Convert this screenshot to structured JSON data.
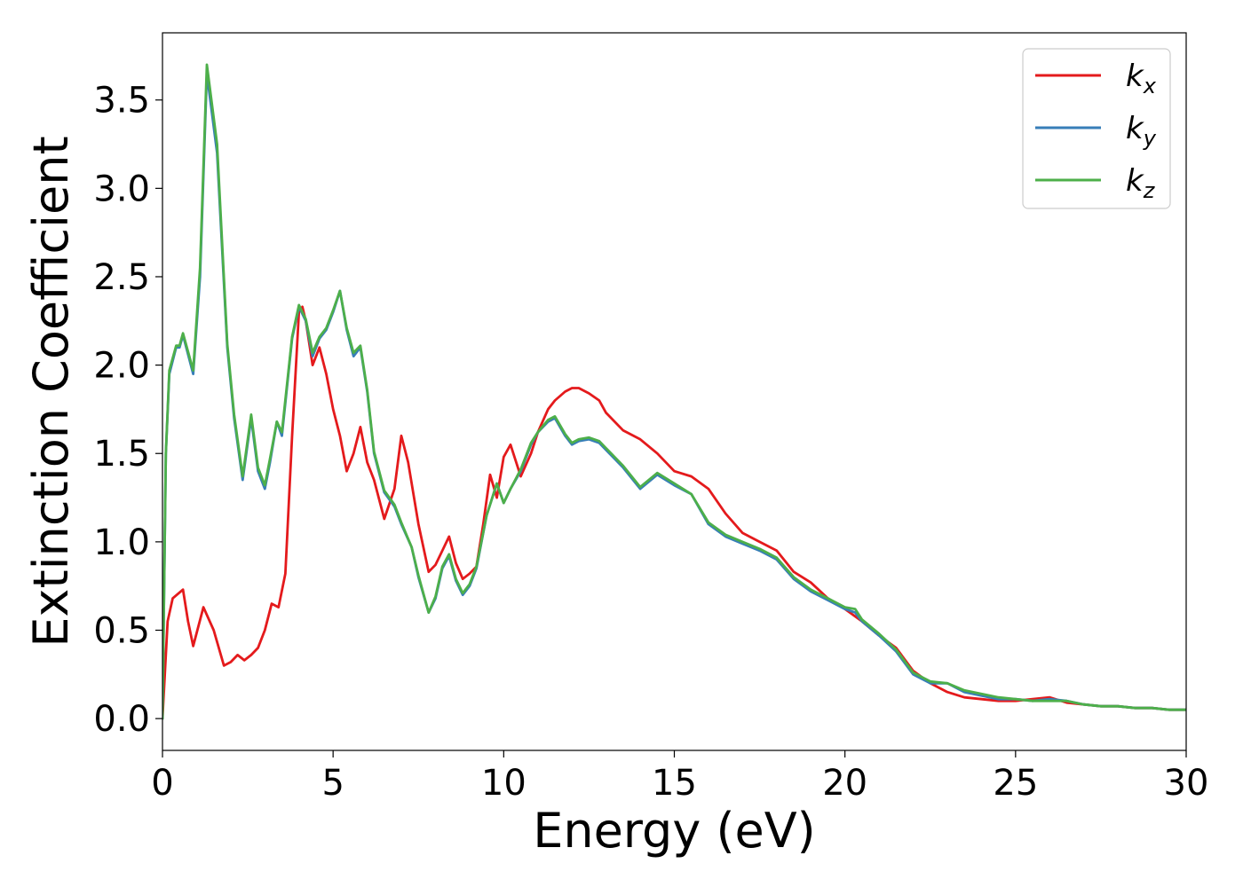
{
  "chart_data": {
    "type": "line",
    "xlabel": "Energy (eV)",
    "ylabel": "Extinction Coefficient",
    "xlim": [
      0,
      30
    ],
    "ylim": [
      -0.18,
      3.88
    ],
    "xticks": [
      "0",
      "5",
      "10",
      "15",
      "20",
      "25",
      "30"
    ],
    "yticks": [
      "0.0",
      "0.5",
      "1.0",
      "1.5",
      "2.0",
      "2.5",
      "3.0",
      "3.5"
    ],
    "grid": false,
    "legend_position": "top-right",
    "series": [
      {
        "name": "k",
        "subscript": "x",
        "color": "#e41a1c",
        "x": [
          0,
          0.15,
          0.3,
          0.6,
          0.75,
          0.9,
          1.2,
          1.5,
          1.8,
          2.0,
          2.2,
          2.4,
          2.6,
          2.8,
          3.0,
          3.2,
          3.4,
          3.6,
          3.8,
          4.0,
          4.1,
          4.2,
          4.4,
          4.6,
          4.8,
          5.0,
          5.2,
          5.4,
          5.6,
          5.8,
          6.0,
          6.2,
          6.5,
          6.8,
          7.0,
          7.2,
          7.5,
          7.8,
          8.0,
          8.2,
          8.4,
          8.6,
          8.8,
          9.0,
          9.2,
          9.4,
          9.6,
          9.8,
          10.0,
          10.2,
          10.5,
          10.8,
          11.0,
          11.3,
          11.5,
          11.8,
          12.0,
          12.2,
          12.5,
          12.8,
          13.0,
          13.5,
          14.0,
          14.5,
          15.0,
          15.5,
          16.0,
          16.5,
          17.0,
          17.5,
          18.0,
          18.5,
          19.0,
          19.5,
          20.0,
          20.5,
          21.0,
          21.5,
          22.0,
          22.5,
          23.0,
          23.5,
          24.0,
          24.5,
          25.0,
          25.5,
          26.0,
          26.5,
          27.0,
          27.5,
          28.0,
          28.5,
          29.0,
          29.5,
          30.0
        ],
        "y": [
          0.0,
          0.55,
          0.68,
          0.73,
          0.55,
          0.41,
          0.63,
          0.5,
          0.3,
          0.32,
          0.36,
          0.33,
          0.36,
          0.4,
          0.5,
          0.65,
          0.63,
          0.82,
          1.6,
          2.3,
          2.33,
          2.25,
          2.0,
          2.1,
          1.95,
          1.75,
          1.6,
          1.4,
          1.5,
          1.65,
          1.45,
          1.35,
          1.13,
          1.3,
          1.6,
          1.45,
          1.1,
          0.83,
          0.87,
          0.95,
          1.03,
          0.88,
          0.79,
          0.82,
          0.86,
          1.1,
          1.38,
          1.25,
          1.48,
          1.55,
          1.37,
          1.5,
          1.62,
          1.75,
          1.8,
          1.85,
          1.87,
          1.87,
          1.84,
          1.8,
          1.73,
          1.63,
          1.58,
          1.5,
          1.4,
          1.37,
          1.3,
          1.16,
          1.05,
          1.0,
          0.95,
          0.83,
          0.77,
          0.68,
          0.62,
          0.55,
          0.47,
          0.4,
          0.27,
          0.2,
          0.15,
          0.12,
          0.11,
          0.1,
          0.1,
          0.11,
          0.12,
          0.09,
          0.08,
          0.07,
          0.07,
          0.06,
          0.06,
          0.05,
          0.05
        ]
      },
      {
        "name": "k",
        "subscript": "y",
        "color": "#377eb8",
        "x": [
          0,
          0.1,
          0.2,
          0.4,
          0.5,
          0.6,
          0.9,
          1.1,
          1.3,
          1.6,
          1.9,
          2.1,
          2.35,
          2.6,
          2.8,
          3.0,
          3.15,
          3.35,
          3.5,
          3.8,
          4.0,
          4.2,
          4.4,
          4.6,
          4.8,
          5.0,
          5.2,
          5.4,
          5.6,
          5.8,
          6.0,
          6.2,
          6.5,
          6.8,
          7.0,
          7.3,
          7.5,
          7.8,
          8.0,
          8.2,
          8.4,
          8.6,
          8.8,
          9.0,
          9.2,
          9.5,
          9.8,
          10.0,
          10.2,
          10.5,
          10.8,
          11.0,
          11.3,
          11.5,
          11.8,
          12.0,
          12.2,
          12.5,
          12.8,
          13.0,
          13.5,
          14.0,
          14.5,
          15.0,
          15.5,
          16.0,
          16.5,
          17.0,
          17.5,
          18.0,
          18.5,
          19.0,
          19.5,
          20.0,
          20.3,
          20.5,
          21.0,
          21.5,
          22.0,
          22.5,
          23.0,
          23.5,
          24.0,
          24.5,
          25.0,
          25.5,
          26.0,
          26.5,
          27.0,
          27.5,
          28.0,
          28.5,
          29.0,
          29.5,
          30.0
        ],
        "y": [
          0.0,
          1.5,
          1.95,
          2.1,
          2.1,
          2.17,
          1.95,
          2.5,
          3.65,
          3.2,
          2.1,
          1.7,
          1.35,
          1.7,
          1.4,
          1.3,
          1.45,
          1.68,
          1.6,
          2.15,
          2.33,
          2.25,
          2.05,
          2.15,
          2.2,
          2.3,
          2.42,
          2.2,
          2.05,
          2.1,
          1.85,
          1.5,
          1.28,
          1.2,
          1.1,
          0.97,
          0.8,
          0.6,
          0.68,
          0.85,
          0.92,
          0.78,
          0.7,
          0.75,
          0.85,
          1.15,
          1.33,
          1.22,
          1.3,
          1.4,
          1.55,
          1.62,
          1.68,
          1.7,
          1.6,
          1.55,
          1.57,
          1.58,
          1.56,
          1.52,
          1.42,
          1.3,
          1.38,
          1.32,
          1.27,
          1.1,
          1.03,
          0.99,
          0.95,
          0.9,
          0.79,
          0.72,
          0.67,
          0.62,
          0.6,
          0.55,
          0.47,
          0.38,
          0.25,
          0.2,
          0.2,
          0.15,
          0.13,
          0.11,
          0.11,
          0.1,
          0.11,
          0.1,
          0.08,
          0.07,
          0.07,
          0.06,
          0.06,
          0.05,
          0.05
        ]
      },
      {
        "name": "k",
        "subscript": "z",
        "color": "#4daf4a",
        "x": [
          0,
          0.1,
          0.2,
          0.4,
          0.5,
          0.6,
          0.9,
          1.1,
          1.3,
          1.6,
          1.9,
          2.1,
          2.35,
          2.6,
          2.8,
          3.0,
          3.15,
          3.35,
          3.5,
          3.8,
          4.0,
          4.2,
          4.4,
          4.6,
          4.8,
          5.0,
          5.2,
          5.4,
          5.6,
          5.8,
          6.0,
          6.2,
          6.5,
          6.8,
          7.0,
          7.3,
          7.5,
          7.8,
          8.0,
          8.2,
          8.4,
          8.6,
          8.8,
          9.0,
          9.2,
          9.5,
          9.8,
          10.0,
          10.2,
          10.5,
          10.8,
          11.0,
          11.3,
          11.5,
          11.8,
          12.0,
          12.2,
          12.5,
          12.8,
          13.0,
          13.5,
          14.0,
          14.5,
          15.0,
          15.5,
          16.0,
          16.5,
          17.0,
          17.5,
          18.0,
          18.5,
          19.0,
          19.5,
          20.0,
          20.3,
          20.5,
          21.0,
          21.5,
          22.0,
          22.5,
          23.0,
          23.5,
          24.0,
          24.5,
          25.0,
          25.5,
          26.0,
          26.5,
          27.0,
          27.5,
          28.0,
          28.5,
          29.0,
          29.5,
          30.0
        ],
        "y": [
          0.0,
          1.5,
          1.97,
          2.11,
          2.11,
          2.18,
          1.97,
          2.55,
          3.7,
          3.25,
          2.12,
          1.72,
          1.37,
          1.72,
          1.42,
          1.32,
          1.47,
          1.68,
          1.62,
          2.16,
          2.34,
          2.26,
          2.07,
          2.16,
          2.21,
          2.31,
          2.42,
          2.21,
          2.07,
          2.11,
          1.86,
          1.51,
          1.29,
          1.21,
          1.11,
          0.97,
          0.81,
          0.6,
          0.69,
          0.86,
          0.93,
          0.79,
          0.71,
          0.76,
          0.86,
          1.15,
          1.33,
          1.22,
          1.3,
          1.41,
          1.56,
          1.62,
          1.69,
          1.71,
          1.61,
          1.56,
          1.58,
          1.59,
          1.57,
          1.53,
          1.43,
          1.31,
          1.39,
          1.33,
          1.27,
          1.11,
          1.04,
          1.0,
          0.96,
          0.91,
          0.8,
          0.73,
          0.68,
          0.63,
          0.62,
          0.56,
          0.48,
          0.39,
          0.26,
          0.21,
          0.2,
          0.16,
          0.14,
          0.12,
          0.11,
          0.1,
          0.1,
          0.1,
          0.08,
          0.07,
          0.07,
          0.06,
          0.06,
          0.05,
          0.05
        ]
      }
    ]
  }
}
